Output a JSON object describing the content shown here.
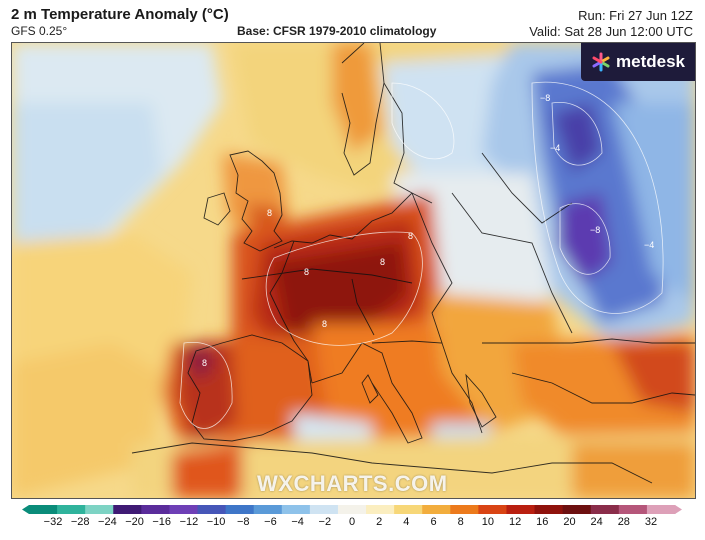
{
  "header": {
    "title": "2 m Temperature Anomaly (°C)",
    "model": "GFS 0.25°",
    "base": "Base: CFSR 1979-2010 climatology",
    "run": "Run: Fri 27 Jun 12Z",
    "valid": "Valid: Sat 28 Jun 12:00 UTC"
  },
  "logo": {
    "text": "metdesk",
    "icon": "metdesk-star-icon"
  },
  "watermark": "WXCHARTS.COM",
  "colorbar": {
    "ticks": [
      "−32",
      "−28",
      "−24",
      "−20",
      "−16",
      "−12",
      "−10",
      "−8",
      "−6",
      "−4",
      "−2",
      "0",
      "2",
      "4",
      "6",
      "8",
      "10",
      "12",
      "16",
      "20",
      "24",
      "28",
      "32"
    ],
    "colors": [
      "#0a8c7a",
      "#2fb39c",
      "#7dd3c4",
      "#3f1a74",
      "#5a2c9b",
      "#6e3fb6",
      "#4656b8",
      "#3e76c8",
      "#5a9ad8",
      "#8ec2ea",
      "#cfe3f2",
      "#f4f2ea",
      "#fbeec0",
      "#f7d778",
      "#f2ad3d",
      "#ec7a1c",
      "#d94414",
      "#b91f10",
      "#8f120c",
      "#6d1010",
      "#8a2d4a",
      "#b5567a",
      "#dda0b8"
    ]
  },
  "contour_labels": [
    "8",
    "8",
    "8",
    "8",
    "8",
    "−8",
    "−8",
    "−4",
    "−4",
    "8"
  ]
}
